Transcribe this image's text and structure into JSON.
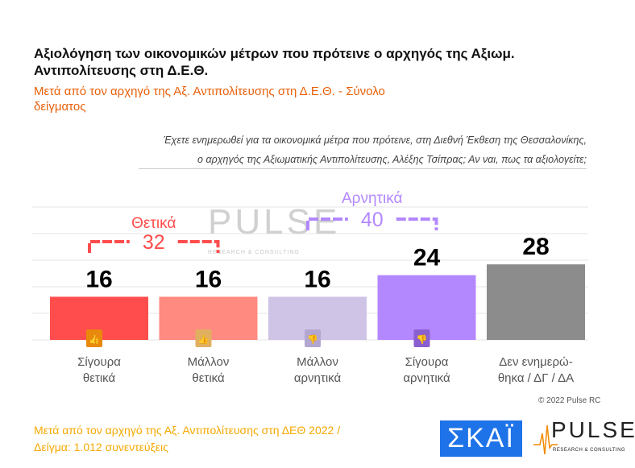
{
  "title": "Αξιολόγηση των οικονομικών μέτρων που πρότεινε ο αρχηγός της Αξιωμ. Αντιπολίτευσης στη Δ.Ε.Θ.",
  "subtitle": "Μετά από τον αρχηγό της Αξ. Αντιπολίτευσης στη Δ.Ε.Θ. - Σύνολο δείγματος",
  "question_line1": "Έχετε ενημερωθεί για τα οικονομικά μέτρα που πρότεινε, στη Διεθνή Έκθεση της Θεσσαλονίκης,",
  "question_line2": "ο αρχηγός της Αξιωματικής Αντιπολίτευσης, Αλέξης Τσίπρας; Αν ναι, πως τα αξιολογείτε;",
  "copyright": "© 2022 Pulse RC",
  "footer_line1": "Μετά από τον αρχηγό της Αξ. Αντιπολίτευσης στη ΔΕΘ  2022  /",
  "footer_line2": "Δείγμα:  1.012 συνεντεύξεις",
  "logos": {
    "skai": "ΣΚΑΪ",
    "pulse": "PULSE",
    "pulse_tag": "RESEARCH & CONSULTING"
  },
  "chart_data": {
    "type": "bar",
    "categories": [
      [
        "Σίγουρα",
        "θετικά"
      ],
      [
        "Μάλλον",
        "θετικά"
      ],
      [
        "Μάλλον",
        "αρνητικά"
      ],
      [
        "Σίγουρα",
        "αρνητικά"
      ],
      [
        "Δεν ενημερώ-",
        "θηκα / ΔΓ / ΔΑ"
      ]
    ],
    "values": [
      16,
      16,
      16,
      24,
      28
    ],
    "colors": [
      "#ff4d4d",
      "#ff8a80",
      "#cfc3e6",
      "#b388ff",
      "#8c8c8c"
    ],
    "icons": [
      "double-thumbs-up-icon",
      "thumbs-up-icon",
      "thumbs-down-icon",
      "double-thumbs-down-icon",
      null
    ],
    "icon_colors": [
      "#e8890c",
      "#e0b060",
      "#b3a6d0",
      "#8a5fd0",
      null
    ],
    "groups": [
      {
        "label": "Θετικά",
        "total": "32",
        "from": 0,
        "to": 1,
        "color": "#ff4d4d"
      },
      {
        "label": "Αρνητικά",
        "total": "40",
        "from": 2,
        "to": 3,
        "color": "#b388ff"
      }
    ],
    "ylim": [
      0,
      50
    ],
    "grid": true
  }
}
